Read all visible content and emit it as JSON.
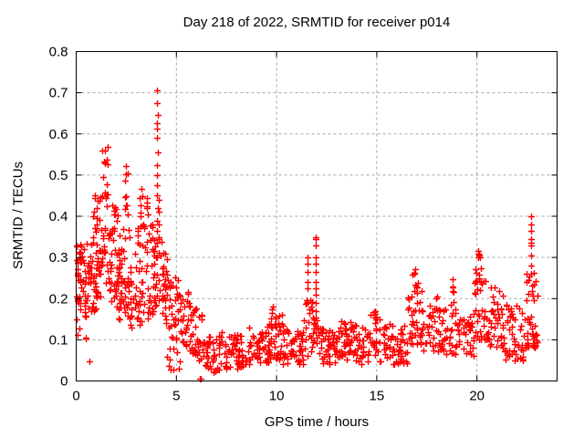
{
  "chart_data": {
    "type": "scatter",
    "title": "Day 218 of 2022, SRMTID for receiver p014",
    "xlabel": "GPS time / hours",
    "ylabel": "SRMTID / TECUs",
    "xlim": [
      0,
      24
    ],
    "ylim": [
      0,
      0.8
    ],
    "xticks": [
      0,
      5,
      10,
      15,
      20
    ],
    "yticks": [
      0,
      0.1,
      0.2,
      0.3,
      0.4,
      0.5,
      0.6,
      0.7,
      0.8
    ],
    "grid": true,
    "legend": "none",
    "background": "#ffffff",
    "grid_color": "#a6a6a6",
    "axis_color": "#000000",
    "marker": {
      "shape": "plus",
      "color": "#ff0000",
      "size": 7
    },
    "series": [
      {
        "name": "SRMTID",
        "estimated": true,
        "seed": 20220218,
        "bands": [
          [
            0.0,
            0.5,
            48,
            0.17,
            0.335,
            1.0
          ],
          [
            0.0,
            0.55,
            7,
            0.1,
            0.17,
            1.0
          ],
          [
            0.5,
            1.0,
            38,
            0.15,
            0.35,
            1.0
          ],
          [
            0.8,
            1.25,
            14,
            0.36,
            0.475,
            1.0
          ],
          [
            1.0,
            1.65,
            42,
            0.2,
            0.38,
            1.0
          ],
          [
            1.25,
            1.6,
            16,
            0.42,
            0.585,
            1.0
          ],
          [
            1.65,
            2.15,
            40,
            0.17,
            0.43,
            1.4
          ],
          [
            2.1,
            2.65,
            40,
            0.15,
            0.4,
            1.3
          ],
          [
            2.42,
            2.6,
            10,
            0.4,
            0.525,
            1.0
          ],
          [
            2.65,
            3.25,
            40,
            0.13,
            0.38,
            1.3
          ],
          [
            3.0,
            3.3,
            7,
            0.38,
            0.47,
            1.0
          ],
          [
            3.25,
            3.85,
            38,
            0.15,
            0.38,
            1.2
          ],
          [
            3.5,
            3.66,
            5,
            0.38,
            0.445,
            1.0
          ],
          [
            3.85,
            4.35,
            36,
            0.18,
            0.36,
            1.1
          ],
          [
            4.3,
            4.7,
            26,
            0.13,
            0.31,
            1.2
          ],
          [
            4.55,
            5.2,
            10,
            0.02,
            0.08,
            1.0
          ],
          [
            4.7,
            5.15,
            26,
            0.1,
            0.26,
            1.2
          ],
          [
            5.15,
            5.7,
            30,
            0.07,
            0.22,
            1.2
          ],
          [
            5.7,
            6.35,
            32,
            0.04,
            0.18,
            1.2
          ],
          [
            6.35,
            7.2,
            42,
            0.02,
            0.11,
            1.1
          ],
          [
            7.2,
            8.5,
            62,
            0.03,
            0.12,
            1.1
          ],
          [
            8.5,
            9.6,
            52,
            0.04,
            0.135,
            1.1
          ],
          [
            9.6,
            10.3,
            40,
            0.05,
            0.16,
            1.2
          ],
          [
            9.65,
            10.0,
            5,
            0.14,
            0.185,
            1.0
          ],
          [
            10.3,
            11.35,
            50,
            0.04,
            0.135,
            1.1
          ],
          [
            11.35,
            11.8,
            20,
            0.06,
            0.21,
            1.3
          ],
          [
            11.8,
            12.15,
            16,
            0.08,
            0.16,
            1.0
          ],
          [
            12.15,
            13.0,
            44,
            0.04,
            0.135,
            1.1
          ],
          [
            13.0,
            14.0,
            50,
            0.05,
            0.145,
            1.1
          ],
          [
            14.0,
            14.65,
            30,
            0.04,
            0.13,
            1.1
          ],
          [
            14.65,
            15.15,
            20,
            0.06,
            0.175,
            1.2
          ],
          [
            15.15,
            16.55,
            62,
            0.04,
            0.145,
            1.1
          ],
          [
            16.55,
            17.25,
            40,
            0.09,
            0.25,
            1.3
          ],
          [
            16.7,
            17.05,
            5,
            0.22,
            0.272,
            1.0
          ],
          [
            17.25,
            18.45,
            50,
            0.07,
            0.185,
            1.2
          ],
          [
            17.95,
            18.12,
            5,
            0.15,
            0.215,
            1.0
          ],
          [
            18.45,
            19.85,
            55,
            0.06,
            0.165,
            1.1
          ],
          [
            18.65,
            18.95,
            7,
            0.15,
            0.252,
            1.0
          ],
          [
            19.85,
            20.65,
            45,
            0.1,
            0.28,
            1.3
          ],
          [
            19.95,
            20.15,
            5,
            0.275,
            0.315,
            1.0
          ],
          [
            20.65,
            21.35,
            38,
            0.08,
            0.245,
            1.4
          ],
          [
            21.35,
            22.45,
            50,
            0.05,
            0.185,
            1.2
          ],
          [
            22.45,
            23.05,
            42,
            0.08,
            0.265,
            1.2
          ]
        ],
        "points": [
          [
            4.05,
            0.705
          ],
          [
            4.05,
            0.675
          ],
          [
            4.06,
            0.645
          ],
          [
            4.04,
            0.625
          ],
          [
            4.05,
            0.612
          ],
          [
            4.05,
            0.59
          ],
          [
            4.06,
            0.555
          ],
          [
            4.05,
            0.525
          ],
          [
            4.04,
            0.5
          ],
          [
            4.05,
            0.475
          ],
          [
            4.05,
            0.45
          ],
          [
            4.06,
            0.42
          ],
          [
            4.05,
            0.39
          ],
          [
            4.05,
            0.365
          ],
          [
            4.12,
            0.44
          ],
          [
            4.13,
            0.41
          ],
          [
            4.12,
            0.38
          ],
          [
            4.13,
            0.35
          ],
          [
            11.55,
            0.3
          ],
          [
            11.55,
            0.285
          ],
          [
            11.56,
            0.265
          ],
          [
            11.55,
            0.24
          ],
          [
            11.54,
            0.225
          ],
          [
            11.95,
            0.35
          ],
          [
            11.95,
            0.345
          ],
          [
            11.96,
            0.33
          ],
          [
            11.94,
            0.3
          ],
          [
            11.95,
            0.285
          ],
          [
            11.95,
            0.265
          ],
          [
            11.96,
            0.24
          ],
          [
            11.95,
            0.225
          ],
          [
            11.94,
            0.21
          ],
          [
            11.95,
            0.19
          ],
          [
            11.95,
            0.17
          ],
          [
            11.96,
            0.155
          ],
          [
            14.9,
            0.17
          ],
          [
            14.9,
            0.155
          ],
          [
            14.91,
            0.14
          ],
          [
            6.18,
            0.006
          ],
          [
            6.23,
            0.006
          ],
          [
            0.65,
            0.047
          ],
          [
            0.47,
            0.105
          ],
          [
            0.5,
            0.103
          ],
          [
            18.8,
            0.248
          ],
          [
            18.8,
            0.23
          ],
          [
            18.81,
            0.215
          ],
          [
            16.9,
            0.272
          ],
          [
            16.88,
            0.26
          ],
          [
            20.05,
            0.315
          ],
          [
            20.04,
            0.3
          ],
          [
            22.68,
            0.4
          ],
          [
            22.7,
            0.38
          ],
          [
            22.7,
            0.365
          ],
          [
            22.69,
            0.345
          ],
          [
            22.7,
            0.335
          ],
          [
            22.71,
            0.328
          ],
          [
            22.7,
            0.305
          ],
          [
            22.7,
            0.28
          ],
          [
            22.72,
            0.26
          ]
        ]
      }
    ]
  }
}
